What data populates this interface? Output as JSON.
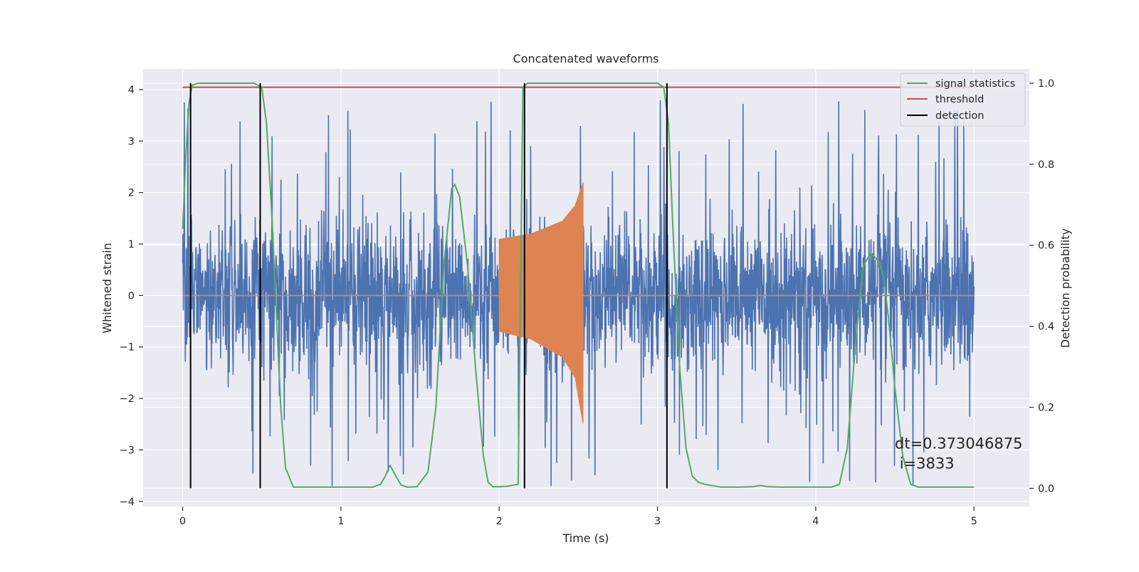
{
  "chart_data": {
    "type": "line",
    "title": "Concatenated waveforms",
    "xlabel": "Time (s)",
    "ylabel_left": "Whitened strain",
    "ylabel_right": "Detection probability",
    "xlim": [
      -0.25,
      5.35
    ],
    "ylim_left": [
      -4.1,
      4.4
    ],
    "ylim_right": [
      -0.045,
      1.035
    ],
    "x_ticks": [
      0,
      1,
      2,
      3,
      4,
      5
    ],
    "x_tick_labels": [
      "0",
      "1",
      "2",
      "3",
      "4",
      "5"
    ],
    "y_left_ticks": [
      -4,
      -3,
      -2,
      -1,
      0,
      1,
      2,
      3,
      4
    ],
    "y_left_tick_labels": [
      "−4",
      "−3",
      "−2",
      "−1",
      "0",
      "1",
      "2",
      "3",
      "4"
    ],
    "y_right_ticks": [
      0.0,
      0.2,
      0.4,
      0.6,
      0.8,
      1.0
    ],
    "y_right_tick_labels": [
      "0.0",
      "0.2",
      "0.4",
      "0.6",
      "0.8",
      "1.0"
    ],
    "grid": true,
    "legend_position": "top-right",
    "legend": [
      {
        "label": "signal statistics",
        "color": "#55a868"
      },
      {
        "label": "threshold",
        "color": "#c44e52"
      },
      {
        "label": "detection",
        "color": "#000000"
      }
    ],
    "colors": {
      "background": "#eaeaf2",
      "grid": "#ffffff",
      "noise": "#4c72b0",
      "template": "#dd8452",
      "signal_statistics": "#55a868",
      "threshold": "#c44e52",
      "detection": "#000000"
    },
    "noise_strain": {
      "x_range": [
        0,
        5
      ],
      "typical_range": [
        -2,
        2.3
      ],
      "max": 4.05,
      "min": -3.7
    },
    "template_strain": {
      "x_range": [
        2.0,
        2.53
      ],
      "envelope": [
        {
          "x": 2.0,
          "lo": -0.7,
          "hi": 1.1
        },
        {
          "x": 2.2,
          "lo": -0.85,
          "hi": 1.2
        },
        {
          "x": 2.4,
          "lo": -1.2,
          "hi": 1.45
        },
        {
          "x": 2.48,
          "lo": -1.6,
          "hi": 1.75
        },
        {
          "x": 2.53,
          "lo": -2.5,
          "hi": 2.2
        }
      ]
    },
    "threshold": {
      "value": 0.99,
      "x_range": [
        0,
        5
      ]
    },
    "detections": [
      0.05,
      0.49,
      2.16,
      3.06
    ],
    "signal_statistics": {
      "x": [
        0.0,
        0.02,
        0.04,
        0.06,
        0.1,
        0.45,
        0.5,
        0.53,
        0.56,
        0.59,
        0.62,
        0.65,
        0.7,
        1.2,
        1.25,
        1.28,
        1.31,
        1.34,
        1.38,
        1.42,
        1.48,
        1.55,
        1.6,
        1.65,
        1.7,
        1.72,
        1.75,
        1.8,
        1.85,
        1.9,
        1.93,
        1.96,
        2.0,
        2.05,
        2.12,
        2.15,
        2.18,
        2.25,
        3.0,
        3.04,
        3.07,
        3.1,
        3.14,
        3.18,
        3.22,
        3.26,
        3.3,
        3.4,
        3.5,
        3.6,
        3.65,
        3.7,
        3.8,
        4.1,
        4.15,
        4.2,
        4.25,
        4.3,
        4.35,
        4.4,
        4.43,
        4.46,
        4.5,
        4.55,
        4.6,
        4.65,
        4.7,
        5.0
      ],
      "y": [
        0.64,
        0.82,
        0.95,
        0.995,
        1.0,
        1.0,
        0.99,
        0.9,
        0.7,
        0.45,
        0.2,
        0.05,
        0.003,
        0.003,
        0.01,
        0.03,
        0.057,
        0.035,
        0.008,
        0.003,
        0.004,
        0.04,
        0.2,
        0.55,
        0.74,
        0.75,
        0.72,
        0.55,
        0.3,
        0.08,
        0.015,
        0.004,
        0.004,
        0.005,
        0.01,
        0.99,
        1.0,
        1.0,
        1.0,
        0.99,
        0.9,
        0.62,
        0.3,
        0.1,
        0.03,
        0.015,
        0.01,
        0.003,
        0.003,
        0.004,
        0.007,
        0.004,
        0.003,
        0.003,
        0.01,
        0.1,
        0.35,
        0.55,
        0.58,
        0.56,
        0.52,
        0.42,
        0.25,
        0.08,
        0.01,
        0.003,
        0.003,
        0.003
      ]
    },
    "annotation": {
      "line1": "dt=0.373046875",
      "line2": " i=3833",
      "x": 4.5,
      "y_right": 0.11
    }
  }
}
